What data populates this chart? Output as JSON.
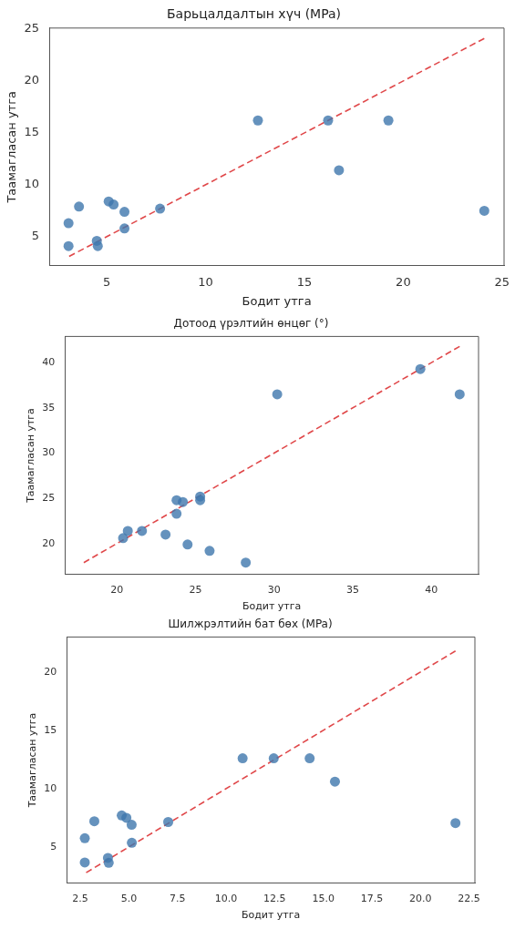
{
  "chart_data": [
    {
      "type": "scatter",
      "title": "Барьцалдалтын хүч (MPa)",
      "xlabel": "Бодит утга",
      "ylabel": "Таамагласан утга",
      "xlim": [
        2.1,
        25.1
      ],
      "ylim": [
        2.2,
        25.1
      ],
      "xticks": [
        5,
        10,
        15,
        20,
        25
      ],
      "yticks": [
        5,
        10,
        15,
        20,
        25
      ],
      "grid": false,
      "legend": false,
      "series": [
        {
          "type": "scatter",
          "marker": "circle",
          "color": "#3f77ad",
          "x": [
            3.07,
            3.07,
            3.6,
            4.5,
            4.55,
            5.1,
            5.35,
            5.9,
            5.9,
            7.7,
            12.65,
            16.2,
            19.25,
            16.75,
            24.1
          ],
          "values": [
            6.3,
            4.1,
            7.9,
            4.6,
            4.1,
            8.4,
            8.1,
            7.4,
            5.8,
            7.7,
            16.2,
            16.2,
            16.2,
            11.4,
            7.5
          ]
        },
        {
          "type": "line",
          "marker": "none",
          "line_style": "dashed",
          "color": "#e0484a",
          "x": [
            3.1,
            24.1
          ],
          "values": [
            3.1,
            24.1
          ]
        }
      ]
    },
    {
      "type": "scatter",
      "title": "Дотоод үрэлтийн өнцөг (°)",
      "xlabel": "Бодит утга",
      "ylabel": "Таамагласан утга",
      "xlim": [
        16.7,
        43
      ],
      "ylim": [
        16.6,
        42.9
      ],
      "xticks": [
        20,
        25,
        30,
        35,
        40
      ],
      "yticks": [
        20,
        25,
        30,
        35,
        40
      ],
      "grid": false,
      "legend": false,
      "series": [
        {
          "type": "scatter",
          "marker": "circle",
          "color": "#3f77ad",
          "x": [
            20.4,
            20.7,
            21.6,
            23.1,
            23.8,
            24.2,
            23.8,
            24.5,
            25.3,
            25.3,
            25.9,
            28.2,
            30.2,
            39.3,
            41.8
          ],
          "values": [
            20.6,
            21.4,
            21.4,
            21.0,
            24.8,
            24.6,
            23.3,
            19.9,
            25.2,
            24.8,
            19.2,
            17.9,
            36.5,
            39.3,
            36.5
          ]
        },
        {
          "type": "line",
          "marker": "none",
          "line_style": "dashed",
          "color": "#e0484a",
          "x": [
            17.9,
            41.8
          ],
          "values": [
            17.9,
            41.8
          ]
        }
      ]
    },
    {
      "type": "scatter",
      "title": "Шилжрэлтийн бат бөх (MPa)",
      "xlabel": "Бодит утга",
      "ylabel": "Таамагласан утга",
      "xlim": [
        1.8,
        22.8
      ],
      "ylim": [
        1.9,
        23
      ],
      "xticks": [
        {
          "value": 2.5,
          "label": "2.5"
        },
        {
          "value": 5,
          "label": "5.0"
        },
        {
          "value": 7.5,
          "label": "7.5"
        },
        {
          "value": 10,
          "label": "10.0"
        },
        {
          "value": 12.5,
          "label": "12.5"
        },
        {
          "value": 15,
          "label": "15.0"
        },
        {
          "value": 17.5,
          "label": "17.5"
        },
        {
          "value": 20,
          "label": "20.0"
        },
        {
          "value": 22.5,
          "label": "22.5"
        }
      ],
      "yticks": [
        5,
        10,
        15,
        20
      ],
      "grid": false,
      "legend": false,
      "series": [
        {
          "type": "scatter",
          "marker": "circle",
          "color": "#3f77ad",
          "x": [
            2.73,
            2.73,
            3.22,
            3.92,
            3.96,
            4.63,
            4.87,
            5.14,
            5.15,
            7.02,
            10.85,
            12.45,
            14.3,
            15.6,
            21.8
          ],
          "values": [
            5.75,
            3.67,
            7.2,
            4.06,
            3.64,
            7.7,
            7.5,
            6.9,
            5.36,
            7.14,
            12.6,
            12.6,
            12.6,
            10.6,
            7.05
          ]
        },
        {
          "type": "line",
          "marker": "none",
          "line_style": "dashed",
          "color": "#e0484a",
          "x": [
            2.8,
            21.8
          ],
          "values": [
            2.8,
            21.8
          ]
        }
      ]
    }
  ]
}
